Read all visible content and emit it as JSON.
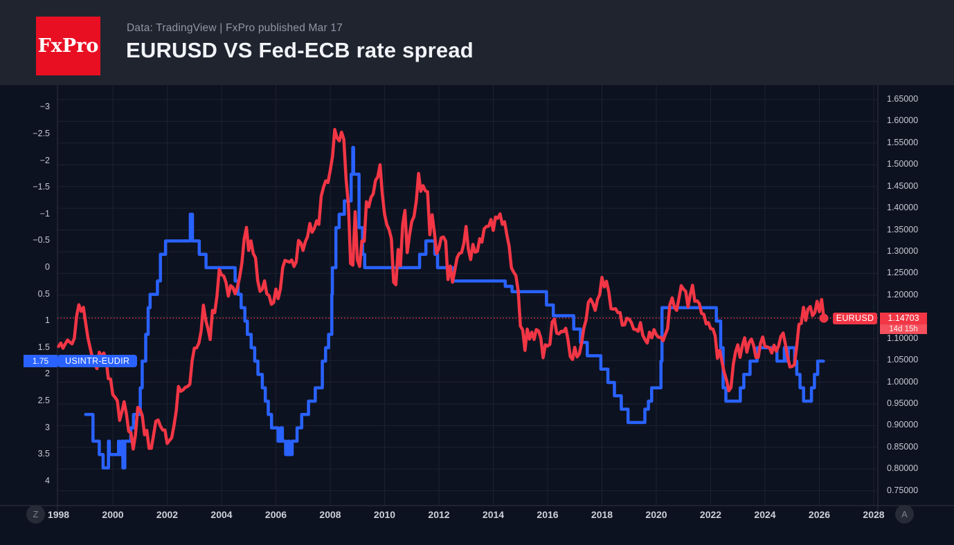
{
  "header": {
    "logo_text": "FxPro",
    "subtitle": "Data: TradingView | FxPro published Mar 17",
    "title": "EURUSD VS Fed-ECB rate spread"
  },
  "colors": {
    "background": "#0d1220",
    "header_background": "#20242f",
    "logo_red": "#e90f23",
    "blue_series": "#2962ff",
    "red_series": "#f23645",
    "countdown_red": "#f4505d",
    "grid": "#1d2330",
    "axis_border": "#2e3342",
    "axis_text": "#c6cad3",
    "subtitle_text": "#8f97a6",
    "title_text": "#f2f4f8"
  },
  "footer": {
    "left_button": "Z",
    "right_button": "A"
  },
  "chart_data": {
    "type": "line",
    "title": "EURUSD VS Fed-ECB rate spread",
    "grid": true,
    "x_axis": {
      "min": 1997.962,
      "max": 2028.153,
      "ticks": [
        [
          1998,
          "1998"
        ],
        [
          2000,
          "2000"
        ],
        [
          2002,
          "2002"
        ],
        [
          2004,
          "2004"
        ],
        [
          2006,
          "2006"
        ],
        [
          2008,
          "2008"
        ],
        [
          2010,
          "2010"
        ],
        [
          2012,
          "2012"
        ],
        [
          2014,
          "2014"
        ],
        [
          2016,
          "2016"
        ],
        [
          2018,
          "2018"
        ],
        [
          2020,
          "2020"
        ],
        [
          2022,
          "2022"
        ],
        [
          2024,
          "2024"
        ],
        [
          2026,
          "2026"
        ],
        [
          2028,
          "2028"
        ]
      ]
    },
    "left_axis": {
      "inverted": true,
      "top_value": -3.4197,
      "bottom_value": 4.456,
      "ticks": [
        [
          -3,
          "−3"
        ],
        [
          -2.5,
          "−2.5"
        ],
        [
          -2,
          "−2"
        ],
        [
          -1.5,
          "−1.5"
        ],
        [
          -1,
          "−1"
        ],
        [
          -0.5,
          "−0.5"
        ],
        [
          0,
          "0"
        ],
        [
          0.5,
          "0.5"
        ],
        [
          1,
          "1"
        ],
        [
          1.5,
          "1.5"
        ],
        [
          2,
          "2"
        ],
        [
          2.5,
          "2.5"
        ],
        [
          3,
          "3"
        ],
        [
          3.5,
          "3.5"
        ],
        [
          4,
          "4"
        ]
      ]
    },
    "right_axis": {
      "top_value": 1.68333,
      "bottom_value": 0.71606,
      "ticks": [
        [
          1.65,
          "1.65000"
        ],
        [
          1.6,
          "1.60000"
        ],
        [
          1.55,
          "1.55000"
        ],
        [
          1.5,
          "1.50000"
        ],
        [
          1.45,
          "1.45000"
        ],
        [
          1.4,
          "1.40000"
        ],
        [
          1.35,
          "1.35000"
        ],
        [
          1.3,
          "1.30000"
        ],
        [
          1.25,
          "1.25000"
        ],
        [
          1.2,
          "1.20000"
        ],
        [
          1.1,
          "1.10000"
        ],
        [
          1.05,
          "1.05000"
        ],
        [
          1.0,
          "1.00000"
        ],
        [
          0.95,
          "0.95000"
        ],
        [
          0.9,
          "0.90000"
        ],
        [
          0.85,
          "0.85000"
        ],
        [
          0.8,
          "0.80000"
        ],
        [
          0.75,
          "0.75000"
        ]
      ],
      "grid_values": [
        1.65,
        1.6,
        1.55,
        1.5,
        1.45,
        1.4,
        1.35,
        1.3,
        1.25,
        1.2,
        1.15,
        1.1,
        1.05,
        1.0,
        0.95,
        0.9,
        0.85,
        0.8,
        0.75
      ]
    },
    "series": [
      {
        "name": "USINTR-EUDIR",
        "axis": "left",
        "style": "step",
        "color": "#2962ff",
        "last_value": 1.75,
        "last_value_label": "1.75",
        "points": [
          [
            1999.0,
            2.75
          ],
          [
            1999.27,
            3.25
          ],
          [
            1999.5,
            3.5
          ],
          [
            1999.64,
            3.75
          ],
          [
            1999.84,
            3.25
          ],
          [
            1999.87,
            3.5
          ],
          [
            2000.21,
            3.25
          ],
          [
            2000.22,
            3.5
          ],
          [
            2000.32,
            3.25
          ],
          [
            2000.37,
            3.75
          ],
          [
            2000.44,
            3.25
          ],
          [
            2000.66,
            3.0
          ],
          [
            2000.76,
            2.75
          ],
          [
            2001.01,
            2.25
          ],
          [
            2001.08,
            1.75
          ],
          [
            2001.21,
            1.25
          ],
          [
            2001.3,
            0.75
          ],
          [
            2001.37,
            0.5
          ],
          [
            2001.64,
            0.25
          ],
          [
            2001.75,
            -0.25
          ],
          [
            2001.94,
            -0.5
          ],
          [
            2002.85,
            -1.0
          ],
          [
            2002.93,
            -0.5
          ],
          [
            2003.18,
            -0.25
          ],
          [
            2003.43,
            0.0
          ],
          [
            2004.5,
            0.25
          ],
          [
            2004.61,
            0.5
          ],
          [
            2004.72,
            0.75
          ],
          [
            2004.86,
            1.0
          ],
          [
            2004.95,
            1.25
          ],
          [
            2005.09,
            1.5
          ],
          [
            2005.22,
            1.75
          ],
          [
            2005.34,
            2.0
          ],
          [
            2005.5,
            2.25
          ],
          [
            2005.61,
            2.5
          ],
          [
            2005.72,
            2.75
          ],
          [
            2005.84,
            3.0
          ],
          [
            2006.08,
            3.25
          ],
          [
            2006.18,
            3.0
          ],
          [
            2006.24,
            3.25
          ],
          [
            2006.36,
            3.5
          ],
          [
            2006.45,
            3.25
          ],
          [
            2006.49,
            3.5
          ],
          [
            2006.6,
            3.25
          ],
          [
            2006.78,
            3.0
          ],
          [
            2006.95,
            2.75
          ],
          [
            2007.2,
            2.5
          ],
          [
            2007.45,
            2.25
          ],
          [
            2007.71,
            1.75
          ],
          [
            2007.83,
            1.5
          ],
          [
            2007.94,
            1.25
          ],
          [
            2008.06,
            0.5
          ],
          [
            2008.08,
            0.0
          ],
          [
            2008.21,
            -0.75
          ],
          [
            2008.33,
            -1.0
          ],
          [
            2008.52,
            -1.25
          ],
          [
            2008.77,
            -1.75
          ],
          [
            2008.83,
            -2.25
          ],
          [
            2008.86,
            -1.75
          ],
          [
            2009.06,
            -0.75
          ],
          [
            2009.19,
            -0.25
          ],
          [
            2009.27,
            0.0
          ],
          [
            2011.29,
            -0.25
          ],
          [
            2011.52,
            -0.5
          ],
          [
            2011.85,
            -0.25
          ],
          [
            2011.95,
            0.0
          ],
          [
            2012.52,
            0.25
          ],
          [
            2014.44,
            0.35
          ],
          [
            2014.69,
            0.45
          ],
          [
            2015.96,
            0.7
          ],
          [
            2016.21,
            0.9
          ],
          [
            2016.96,
            1.15
          ],
          [
            2017.21,
            1.4
          ],
          [
            2017.46,
            1.65
          ],
          [
            2017.96,
            1.9
          ],
          [
            2018.22,
            2.15
          ],
          [
            2018.46,
            2.4
          ],
          [
            2018.71,
            2.65
          ],
          [
            2018.96,
            2.9
          ],
          [
            2019.58,
            2.65
          ],
          [
            2019.71,
            2.5
          ],
          [
            2019.83,
            2.25
          ],
          [
            2020.17,
            1.75
          ],
          [
            2020.21,
            0.75
          ],
          [
            2022.21,
            1.0
          ],
          [
            2022.37,
            1.5
          ],
          [
            2022.46,
            2.25
          ],
          [
            2022.56,
            2.5
          ],
          [
            2023.09,
            2.25
          ],
          [
            2023.22,
            2.0
          ],
          [
            2023.45,
            1.75
          ],
          [
            2023.71,
            1.5
          ],
          [
            2024.44,
            1.75
          ],
          [
            2024.71,
            1.5
          ],
          [
            2024.79,
            1.75
          ],
          [
            2024.86,
            1.5
          ],
          [
            2025.09,
            1.75
          ],
          [
            2025.17,
            2.0
          ],
          [
            2025.29,
            2.25
          ],
          [
            2025.42,
            2.5
          ],
          [
            2025.71,
            2.25
          ],
          [
            2025.82,
            2.0
          ],
          [
            2025.94,
            1.75
          ],
          [
            2026.15,
            1.75
          ]
        ]
      },
      {
        "name": "EURUSD",
        "axis": "right",
        "style": "line",
        "color": "#f23645",
        "last_value": 1.14703,
        "last_value_label": "1.14703",
        "countdown": "14d 15h",
        "start_year": 1998,
        "monthly_values": [
          1.082,
          1.09,
          1.078,
          1.088,
          1.097,
          1.092,
          1.088,
          1.101,
          1.152,
          1.178,
          1.163,
          1.172,
          1.136,
          1.102,
          1.078,
          1.056,
          1.041,
          1.031,
          1.069,
          1.059,
          1.067,
          1.052,
          1.008,
          1.007,
          0.971,
          0.965,
          0.957,
          0.912,
          0.932,
          0.955,
          0.927,
          0.887,
          0.883,
          0.846,
          0.879,
          0.942,
          0.937,
          0.923,
          0.879,
          0.889,
          0.848,
          0.848,
          0.879,
          0.91,
          0.913,
          0.899,
          0.89,
          0.89,
          0.859,
          0.866,
          0.872,
          0.9,
          0.934,
          0.99,
          0.979,
          0.982,
          0.988,
          0.99,
          0.995,
          1.049,
          1.078,
          1.079,
          1.09,
          1.118,
          1.177,
          1.143,
          1.123,
          1.098,
          1.165,
          1.16,
          1.199,
          1.259,
          1.247,
          1.244,
          1.229,
          1.198,
          1.222,
          1.218,
          1.203,
          1.218,
          1.242,
          1.274,
          1.329,
          1.356,
          1.303,
          1.325,
          1.296,
          1.286,
          1.233,
          1.209,
          1.214,
          1.233,
          1.203,
          1.199,
          1.179,
          1.183,
          1.214,
          1.192,
          1.214,
          1.263,
          1.28,
          1.278,
          1.276,
          1.281,
          1.266,
          1.277,
          1.326,
          1.32,
          1.303,
          1.323,
          1.335,
          1.365,
          1.345,
          1.354,
          1.371,
          1.363,
          1.427,
          1.448,
          1.463,
          1.459,
          1.487,
          1.519,
          1.581,
          1.562,
          1.555,
          1.575,
          1.559,
          1.467,
          1.41,
          1.273,
          1.269,
          1.392,
          1.281,
          1.266,
          1.325,
          1.324,
          1.415,
          1.403,
          1.425,
          1.433,
          1.464,
          1.472,
          1.5,
          1.433,
          1.386,
          1.362,
          1.351,
          1.33,
          1.23,
          1.224,
          1.305,
          1.268,
          1.363,
          1.395,
          1.298,
          1.338,
          1.369,
          1.381,
          1.416,
          1.48,
          1.439,
          1.452,
          1.44,
          1.438,
          1.339,
          1.385,
          1.344,
          1.296,
          1.308,
          1.332,
          1.334,
          1.324,
          1.236,
          1.267,
          1.23,
          1.257,
          1.286,
          1.296,
          1.298,
          1.319,
          1.358,
          1.306,
          1.282,
          1.317,
          1.299,
          1.301,
          1.33,
          1.322,
          1.353,
          1.358,
          1.359,
          1.374,
          1.349,
          1.38,
          1.377,
          1.387,
          1.363,
          1.369,
          1.339,
          1.313,
          1.263,
          1.253,
          1.245,
          1.21,
          1.129,
          1.12,
          1.073,
          1.122,
          1.099,
          1.115,
          1.098,
          1.121,
          1.118,
          1.101,
          1.056,
          1.086,
          1.083,
          1.087,
          1.138,
          1.145,
          1.113,
          1.111,
          1.117,
          1.116,
          1.124,
          1.098,
          1.059,
          1.052,
          1.08,
          1.058,
          1.065,
          1.09,
          1.124,
          1.143,
          1.184,
          1.191,
          1.181,
          1.165,
          1.19,
          1.201,
          1.241,
          1.219,
          1.232,
          1.208,
          1.169,
          1.168,
          1.169,
          1.16,
          1.16,
          1.131,
          1.132,
          1.147,
          1.145,
          1.137,
          1.122,
          1.121,
          1.117,
          1.137,
          1.108,
          1.098,
          1.09,
          1.115,
          1.102,
          1.121,
          1.109,
          1.103,
          1.103,
          1.095,
          1.11,
          1.123,
          1.178,
          1.194,
          1.172,
          1.165,
          1.193,
          1.222,
          1.214,
          1.209,
          1.173,
          1.202,
          1.223,
          1.186,
          1.187,
          1.181,
          1.158,
          1.156,
          1.134,
          1.137,
          1.123,
          1.122,
          1.107,
          1.055,
          1.073,
          1.048,
          1.022,
          1.005,
          0.98,
          0.988,
          1.041,
          1.07,
          1.086,
          1.057,
          1.084,
          1.102,
          1.069,
          1.091,
          1.099,
          1.084,
          1.057,
          1.057,
          1.089,
          1.104,
          1.082,
          1.081,
          1.079,
          1.067,
          1.085,
          1.071,
          1.083,
          1.105,
          1.113,
          1.088,
          1.058,
          1.035,
          1.036,
          1.04,
          1.082,
          1.133,
          1.135,
          1.172,
          1.142,
          1.168,
          1.174,
          1.153,
          1.16,
          1.186,
          1.162,
          1.19,
          1.14703
        ]
      }
    ]
  }
}
